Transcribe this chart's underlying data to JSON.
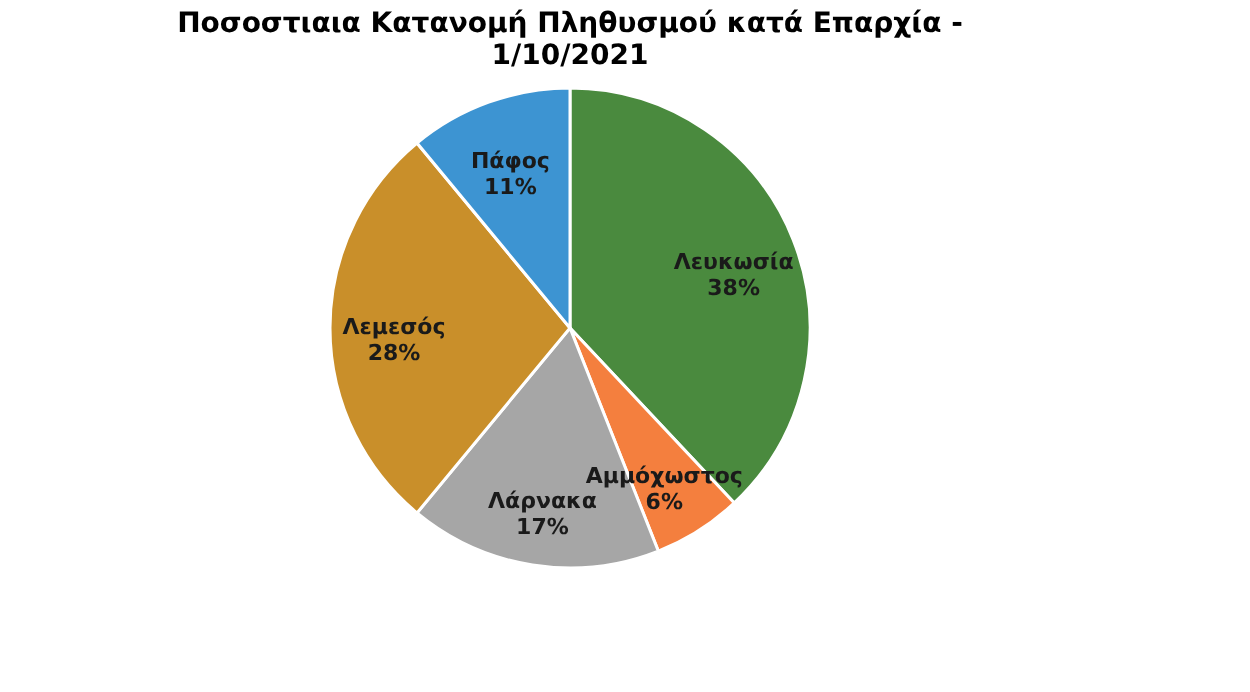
{
  "chart_data": {
    "type": "pie",
    "title": [
      "Ποσοστιαια Κατανομή Πληθυσμού κατά Επαρχία -",
      "1/10/2021"
    ],
    "categories": [
      "Λευκωσία",
      "Αμμόχωστος",
      "Λάρνακα",
      "Λεμεσός",
      "Πάφος"
    ],
    "values": [
      38,
      6,
      17,
      28,
      11
    ],
    "colors": [
      "#4a8a3e",
      "#f47f3e",
      "#a6a6a6",
      "#c98f2a",
      "#3d94d2"
    ],
    "value_labels": [
      "38%",
      "6%",
      "17%",
      "28%",
      "11%"
    ],
    "legend": false
  }
}
